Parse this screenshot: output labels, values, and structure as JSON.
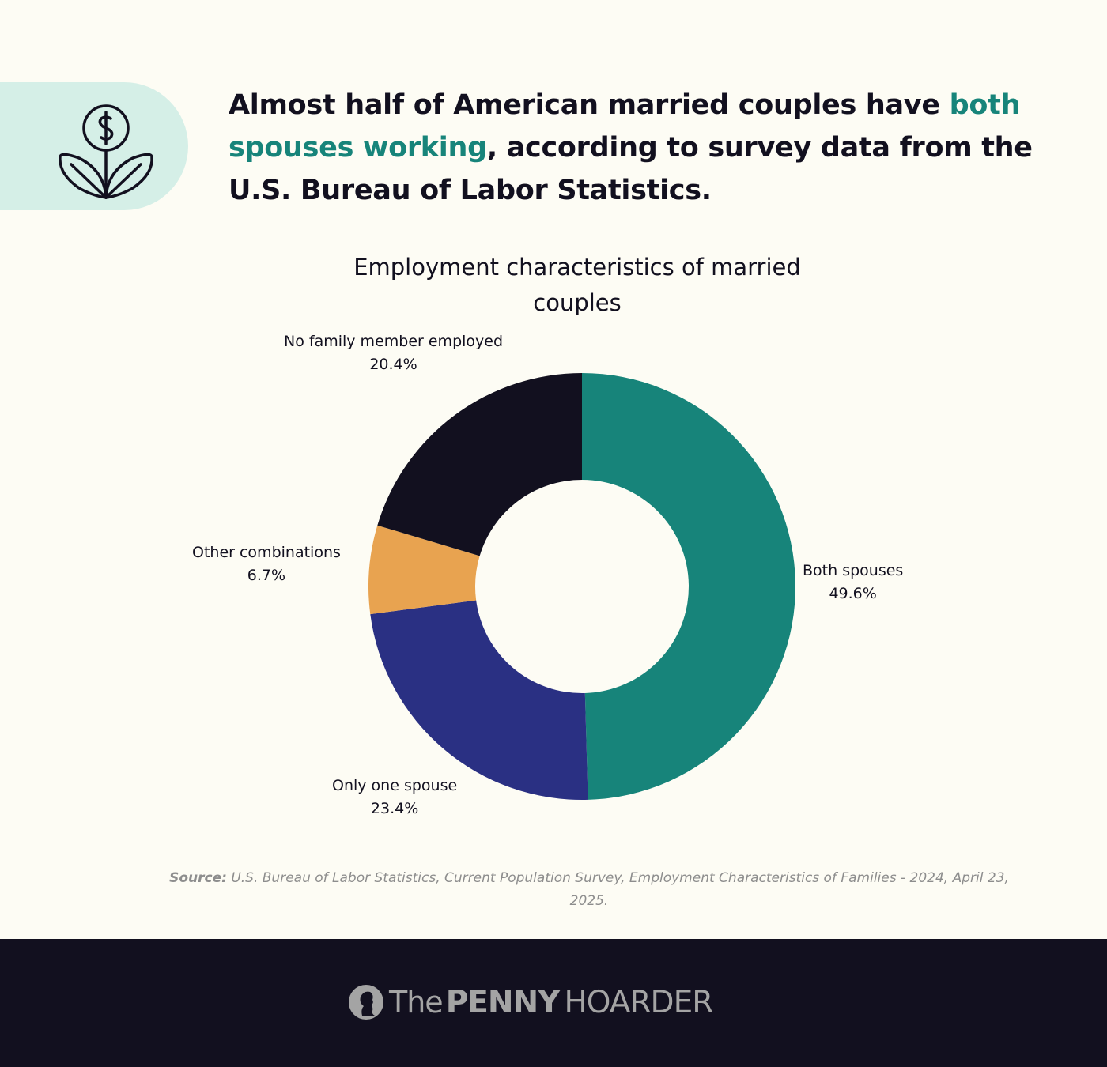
{
  "header": {
    "icon": "money-plant-icon",
    "title_part1": "Almost half of American married couples have ",
    "title_highlight": "both spouses working",
    "title_part2": ", according to survey data from the U.S. Bureau of Labor Statistics."
  },
  "chart_data": {
    "type": "pie",
    "variant": "donut",
    "title": "Employment characteristics of married couples",
    "categories": [
      "Both spouses",
      "Only one spouse",
      "Other combinations",
      "No family member employed"
    ],
    "values": [
      49.6,
      23.4,
      6.7,
      20.4
    ],
    "value_labels": [
      "49.6%",
      "23.4%",
      "6.7%",
      "20.4%"
    ],
    "colors": [
      "#17847a",
      "#2a3083",
      "#e8a350",
      "#12101f"
    ],
    "start": "12 o'clock",
    "direction": "clockwise"
  },
  "source": {
    "label": "Source:",
    "text": " U.S. Bureau of Labor Statistics, Current Population Survey, Employment Characteristics of Families - 2024, April 23, 2025."
  },
  "footer": {
    "logo_the": "The",
    "logo_penny": "PENNY",
    "logo_hoarder": "HOARDER",
    "logo_icon": "coin-silhouette-icon"
  }
}
